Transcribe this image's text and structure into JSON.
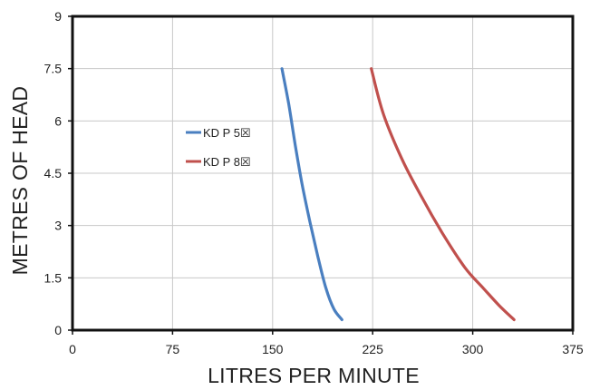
{
  "chart_data": {
    "type": "line",
    "title": "",
    "xlabel": "LITRES PER MINUTE",
    "ylabel": "METRES OF HEAD",
    "xlim": [
      0,
      375
    ],
    "ylim": [
      0,
      9
    ],
    "xticks": [
      "0",
      "75",
      "150",
      "225",
      "300",
      "375"
    ],
    "yticks": [
      "0",
      "1.5",
      "3",
      "4.5",
      "6",
      "7.5",
      "9"
    ],
    "grid": true,
    "legend": "left-middle",
    "series": [
      {
        "name": "KD P 5☒",
        "color": "#4a7fc0",
        "x": [
          157,
          162,
          167,
          172,
          178,
          184,
          190,
          196,
          202
        ],
        "y": [
          7.5,
          6.5,
          5.3,
          4.2,
          3.1,
          2.1,
          1.2,
          0.6,
          0.3
        ]
      },
      {
        "name": "KD P 8☒",
        "color": "#c0504d",
        "x": [
          224,
          233,
          247,
          262,
          277,
          294,
          308,
          320,
          331
        ],
        "y": [
          7.5,
          6.2,
          4.9,
          3.8,
          2.8,
          1.8,
          1.2,
          0.7,
          0.3
        ]
      }
    ]
  }
}
